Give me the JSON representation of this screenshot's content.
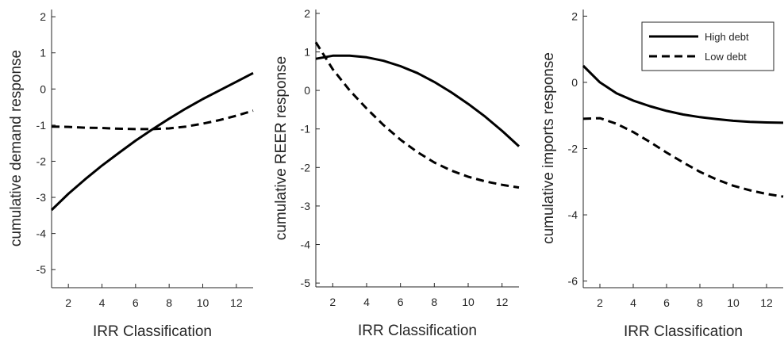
{
  "chart_data": [
    {
      "type": "line",
      "xlabel": "IRR Classification",
      "ylabel": "cumulative demand response",
      "xlim": [
        1,
        13
      ],
      "ylim": [
        -5.5,
        2.2
      ],
      "xticks": [
        2,
        4,
        6,
        8,
        10,
        12
      ],
      "yticks": [
        -5,
        -4,
        -3,
        -2,
        -1,
        0,
        1,
        2
      ],
      "x": [
        1,
        2,
        3,
        4,
        5,
        6,
        7,
        8,
        9,
        10,
        11,
        12,
        13
      ],
      "series": [
        {
          "name": "High debt",
          "style": "solid",
          "values": [
            -3.35,
            -2.9,
            -2.5,
            -2.12,
            -1.77,
            -1.43,
            -1.12,
            -0.82,
            -0.54,
            -0.28,
            -0.04,
            0.2,
            0.44
          ]
        },
        {
          "name": "Low debt",
          "style": "dashed",
          "values": [
            -1.04,
            -1.05,
            -1.07,
            -1.08,
            -1.1,
            -1.11,
            -1.11,
            -1.09,
            -1.04,
            -0.96,
            -0.86,
            -0.74,
            -0.6
          ]
        }
      ],
      "grid": false
    },
    {
      "type": "line",
      "xlabel": "IRR Classification",
      "ylabel": "cumulative REER response",
      "xlim": [
        1,
        13
      ],
      "ylim": [
        -5.1,
        2.1
      ],
      "xticks": [
        2,
        4,
        6,
        8,
        10,
        12
      ],
      "yticks": [
        -5,
        -4,
        -3,
        -2,
        -1,
        0,
        1,
        2
      ],
      "x": [
        1,
        2,
        3,
        4,
        5,
        6,
        7,
        8,
        9,
        10,
        11,
        12,
        13
      ],
      "series": [
        {
          "name": "High debt",
          "style": "solid",
          "values": [
            0.82,
            0.9,
            0.9,
            0.86,
            0.77,
            0.63,
            0.45,
            0.22,
            -0.05,
            -0.35,
            -0.68,
            -1.05,
            -1.45
          ]
        },
        {
          "name": "Low debt",
          "style": "dashed",
          "values": [
            1.25,
            0.55,
            0.0,
            -0.47,
            -0.9,
            -1.28,
            -1.6,
            -1.87,
            -2.08,
            -2.24,
            -2.36,
            -2.45,
            -2.52
          ]
        }
      ],
      "grid": false
    },
    {
      "type": "line",
      "xlabel": "IRR Classification",
      "ylabel": "cumulative imports response",
      "xlim": [
        1,
        13
      ],
      "ylim": [
        -6.2,
        2.2
      ],
      "xticks": [
        2,
        4,
        6,
        8,
        10,
        12
      ],
      "yticks": [
        -6,
        -4,
        -2,
        0,
        2
      ],
      "x": [
        1,
        2,
        3,
        4,
        5,
        6,
        7,
        8,
        9,
        10,
        11,
        12,
        13
      ],
      "series": [
        {
          "name": "High debt",
          "style": "solid",
          "values": [
            0.5,
            0.0,
            -0.33,
            -0.55,
            -0.72,
            -0.86,
            -0.97,
            -1.05,
            -1.11,
            -1.16,
            -1.19,
            -1.21,
            -1.22
          ]
        },
        {
          "name": "Low debt",
          "style": "dashed",
          "values": [
            -1.1,
            -1.08,
            -1.25,
            -1.5,
            -1.8,
            -2.12,
            -2.42,
            -2.7,
            -2.93,
            -3.12,
            -3.26,
            -3.37,
            -3.45
          ]
        }
      ],
      "grid": false,
      "legend": {
        "placement": "top-right",
        "entries": [
          "High debt",
          "Low debt"
        ]
      }
    }
  ],
  "colors": {
    "line": "#000000",
    "axis": "#262626",
    "background": "#ffffff"
  }
}
